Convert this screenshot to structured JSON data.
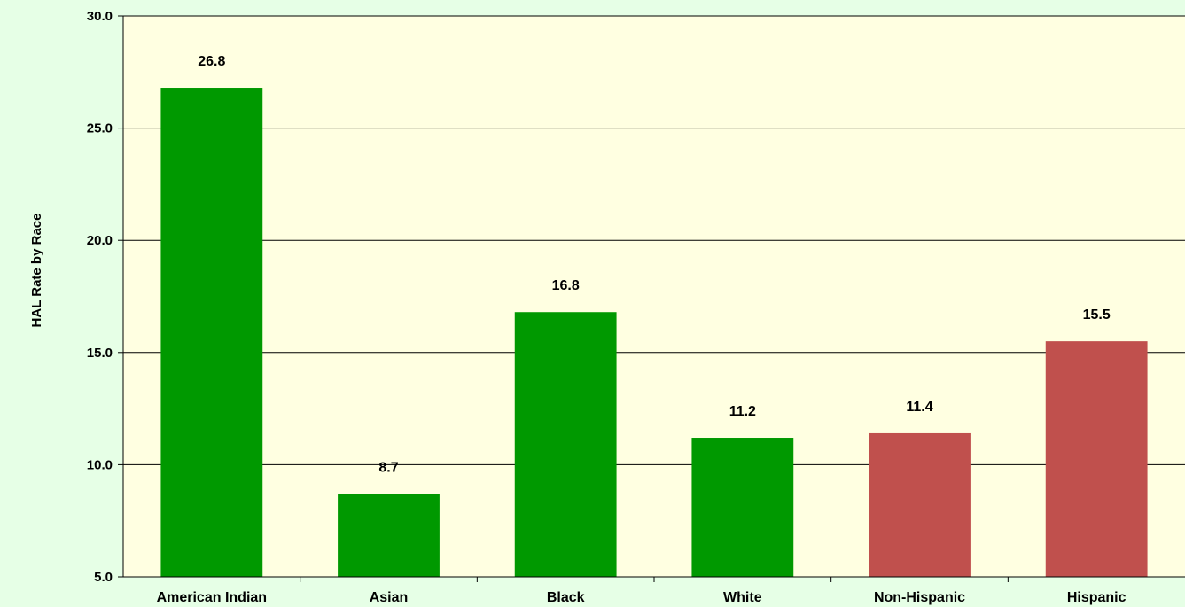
{
  "chart_data": {
    "type": "bar",
    "title": "",
    "xlabel": "",
    "ylabel": "HAL Rate by Race",
    "ylim": [
      5.0,
      30.0
    ],
    "yticks": [
      "5.0",
      "10.0",
      "15.0",
      "20.0",
      "25.0",
      "30.0"
    ],
    "ytick_values": [
      5,
      10,
      15,
      20,
      25,
      30
    ],
    "grid": true,
    "legend": "none",
    "categories": [
      "American Indian",
      "Asian",
      "Black",
      "White",
      "Non-Hispanic",
      "Hispanic"
    ],
    "values": [
      26.8,
      8.7,
      16.8,
      11.2,
      11.4,
      15.5
    ],
    "value_labels": [
      "26.8",
      "8.7",
      "16.8",
      "11.2",
      "11.4",
      "15.5"
    ],
    "bar_colors": [
      "#009900",
      "#009900",
      "#009900",
      "#009900",
      "#c0504d",
      "#c0504d"
    ],
    "plot_background": "#ffffe1",
    "page_background": "#e6ffe6"
  }
}
